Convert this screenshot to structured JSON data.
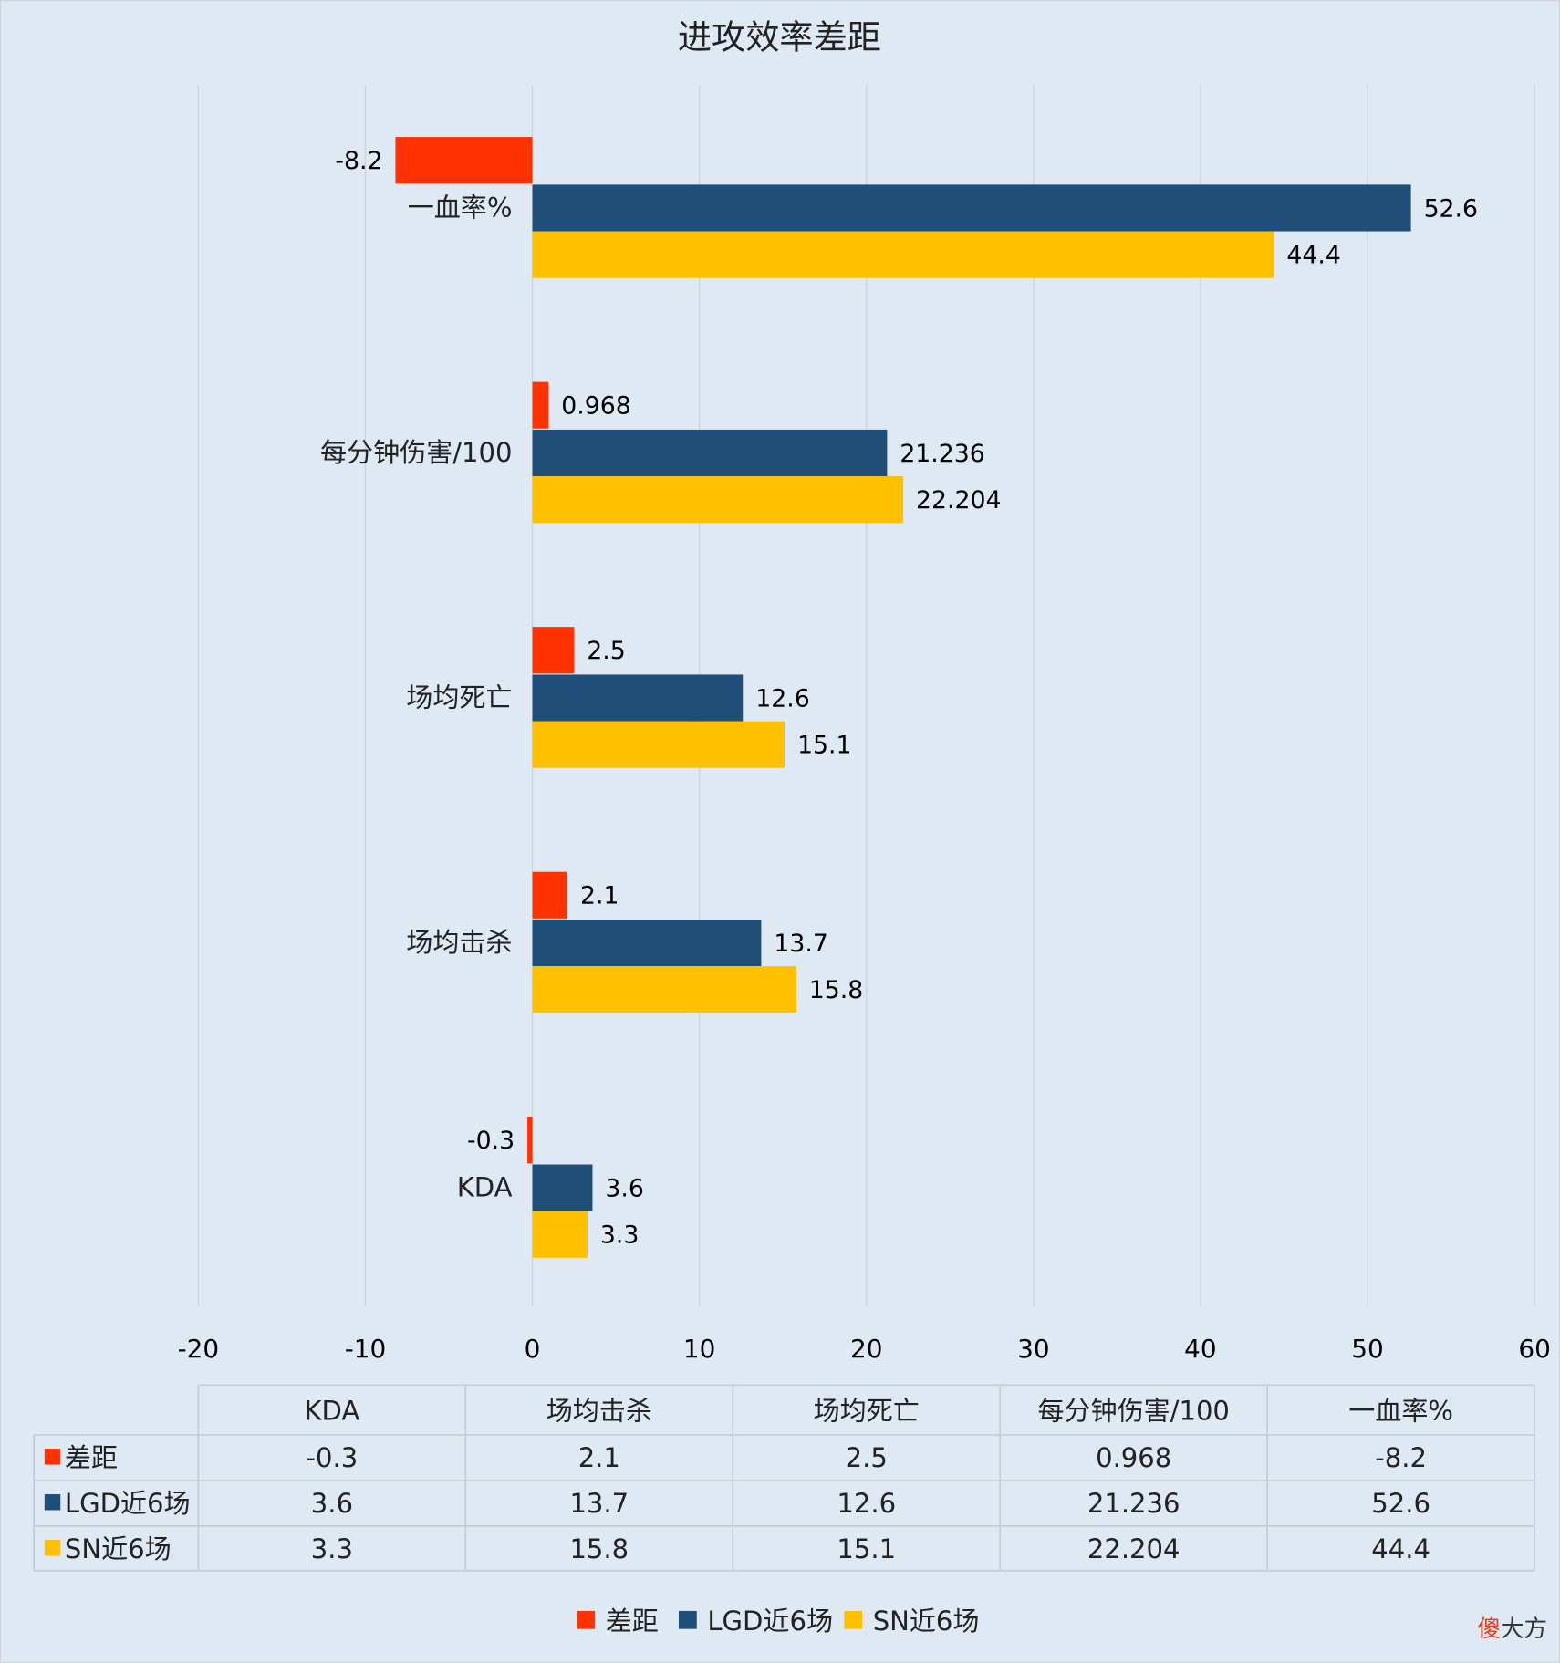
{
  "chart_data": {
    "type": "bar",
    "orientation": "horizontal",
    "title": "进攻效率差距",
    "categories": [
      "KDA",
      "场均击杀",
      "场均死亡",
      "每分钟伤害/100",
      "一血率%"
    ],
    "series": [
      {
        "name": "差距",
        "color": "#ff3300",
        "values": [
          -0.3,
          2.1,
          2.5,
          0.968,
          -8.2
        ],
        "labels": [
          "-0.3",
          "2.1",
          "2.5",
          "0.968",
          "-8.2"
        ]
      },
      {
        "name": "LGD近6场",
        "color": "#1f4e79",
        "values": [
          3.6,
          13.7,
          12.6,
          21.236,
          52.6
        ],
        "labels": [
          "3.6",
          "13.7",
          "12.6",
          "21.236",
          "52.6"
        ]
      },
      {
        "name": "SN近6场",
        "color": "#ffc000",
        "values": [
          3.3,
          15.8,
          15.1,
          22.204,
          44.4
        ],
        "labels": [
          "3.3",
          "15.8",
          "15.1",
          "22.204",
          "44.4"
        ]
      }
    ],
    "xlim": [
      -20,
      60
    ],
    "xticks": [
      "-20",
      "-10",
      "0",
      "10",
      "20",
      "30",
      "40",
      "50",
      "60"
    ],
    "grid": true,
    "data_table": true,
    "legend": "bottom"
  },
  "watermark": {
    "part1": "傻",
    "part2": "大方",
    "color1": "#e8391e"
  }
}
